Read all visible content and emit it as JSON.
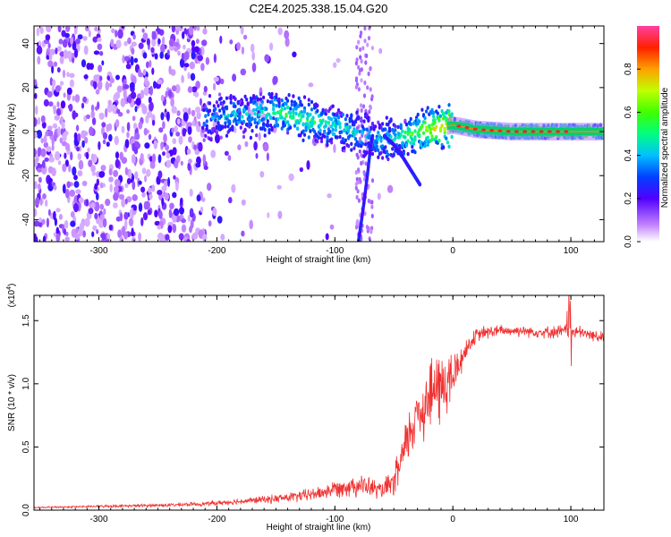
{
  "title": "C2E4.2025.338.15.04.G20",
  "chart_data": [
    {
      "type": "heatmap",
      "xlabel": "Height of straight line (km)",
      "ylabel": "Frequency (Hz)",
      "xlim": [
        -355,
        128
      ],
      "ylim": [
        -50,
        48
      ],
      "xticks": [
        -300,
        -200,
        -100,
        0,
        100
      ],
      "yticks": [
        -40,
        -20,
        0,
        20,
        40
      ],
      "xtick_labels": [
        "-300",
        "-200",
        "-100",
        "0",
        "100"
      ],
      "ytick_labels": [
        "-40",
        "-20",
        "0",
        "20",
        "40"
      ],
      "colorbar": {
        "label": "Normalized spectral amplitude",
        "range": [
          0,
          1
        ],
        "ticks": [
          0.0,
          0.2,
          0.4,
          0.6,
          0.8
        ],
        "tick_labels": [
          "0.0",
          "0.2",
          "0.4",
          "0.6",
          "0.8"
        ]
      },
      "ridge": {
        "x": [
          -210,
          -190,
          -170,
          -150,
          -130,
          -110,
          -90,
          -75,
          -60,
          -45,
          -30,
          -10,
          0,
          20,
          50,
          90,
          128
        ],
        "y": [
          6,
          7,
          8,
          9,
          6,
          4,
          1,
          -2,
          -4,
          -3,
          0,
          2,
          3,
          1,
          0,
          0,
          0
        ],
        "amplitude": [
          0.35,
          0.4,
          0.45,
          0.5,
          0.55,
          0.5,
          0.45,
          0.4,
          0.4,
          0.5,
          0.6,
          0.75,
          0.8,
          0.85,
          0.9,
          0.9,
          0.85
        ]
      },
      "branches": [
        {
          "x": [
            -80,
            -76,
            -72,
            -70,
            -68
          ],
          "y": [
            -50,
            -35,
            -18,
            -8,
            -2
          ]
        },
        {
          "x": [
            -58,
            -50,
            -42,
            -35,
            -28
          ],
          "y": [
            -2,
            -6,
            -12,
            -18,
            -24
          ]
        }
      ]
    },
    {
      "type": "line",
      "xlabel": "Height of straight line (km)",
      "ylabel": "SNR (10 * v/v)",
      "y_multiplier": "(x10",
      "y_multiplier_exp": "4",
      "y_multiplier_close": ")",
      "xlim": [
        -355,
        128
      ],
      "ylim": [
        0,
        1.7
      ],
      "xticks": [
        -300,
        -200,
        -100,
        0,
        100
      ],
      "yticks": [
        0.0,
        0.5,
        1.0,
        1.5
      ],
      "xtick_labels": [
        "-300",
        "-200",
        "-100",
        "0",
        "100"
      ],
      "ytick_labels": [
        "0.0",
        "0.5",
        "1.0",
        "1.5"
      ],
      "color": "#f03030",
      "series": [
        {
          "x": [
            -355,
            -330,
            -300,
            -270,
            -240,
            -210,
            -180,
            -150,
            -130,
            -110,
            -100,
            -90,
            -80,
            -70,
            -60,
            -50,
            -45,
            -40,
            -35,
            -30,
            -25,
            -20,
            -15,
            -10,
            -5,
            0,
            5,
            10,
            15,
            20,
            25,
            30,
            40,
            50,
            60,
            70,
            80,
            90,
            100,
            110,
            120,
            128
          ],
          "y": [
            0.02,
            0.025,
            0.03,
            0.035,
            0.04,
            0.05,
            0.07,
            0.09,
            0.11,
            0.14,
            0.17,
            0.19,
            0.2,
            0.18,
            0.15,
            0.22,
            0.35,
            0.5,
            0.65,
            0.78,
            0.82,
            0.9,
            0.95,
            0.98,
            1.0,
            1.05,
            1.15,
            1.25,
            1.33,
            1.38,
            1.4,
            1.41,
            1.42,
            1.42,
            1.42,
            1.41,
            1.41,
            1.41,
            1.42,
            1.4,
            1.38,
            1.37
          ],
          "noise": [
            0.005,
            0.006,
            0.008,
            0.01,
            0.012,
            0.015,
            0.02,
            0.03,
            0.04,
            0.05,
            0.06,
            0.07,
            0.08,
            0.07,
            0.06,
            0.1,
            0.15,
            0.18,
            0.2,
            0.22,
            0.24,
            0.26,
            0.28,
            0.28,
            0.25,
            0.2,
            0.12,
            0.08,
            0.06,
            0.05,
            0.05,
            0.05,
            0.04,
            0.04,
            0.04,
            0.04,
            0.04,
            0.05,
            0.06,
            0.04,
            0.04,
            0.04
          ]
        }
      ]
    }
  ]
}
